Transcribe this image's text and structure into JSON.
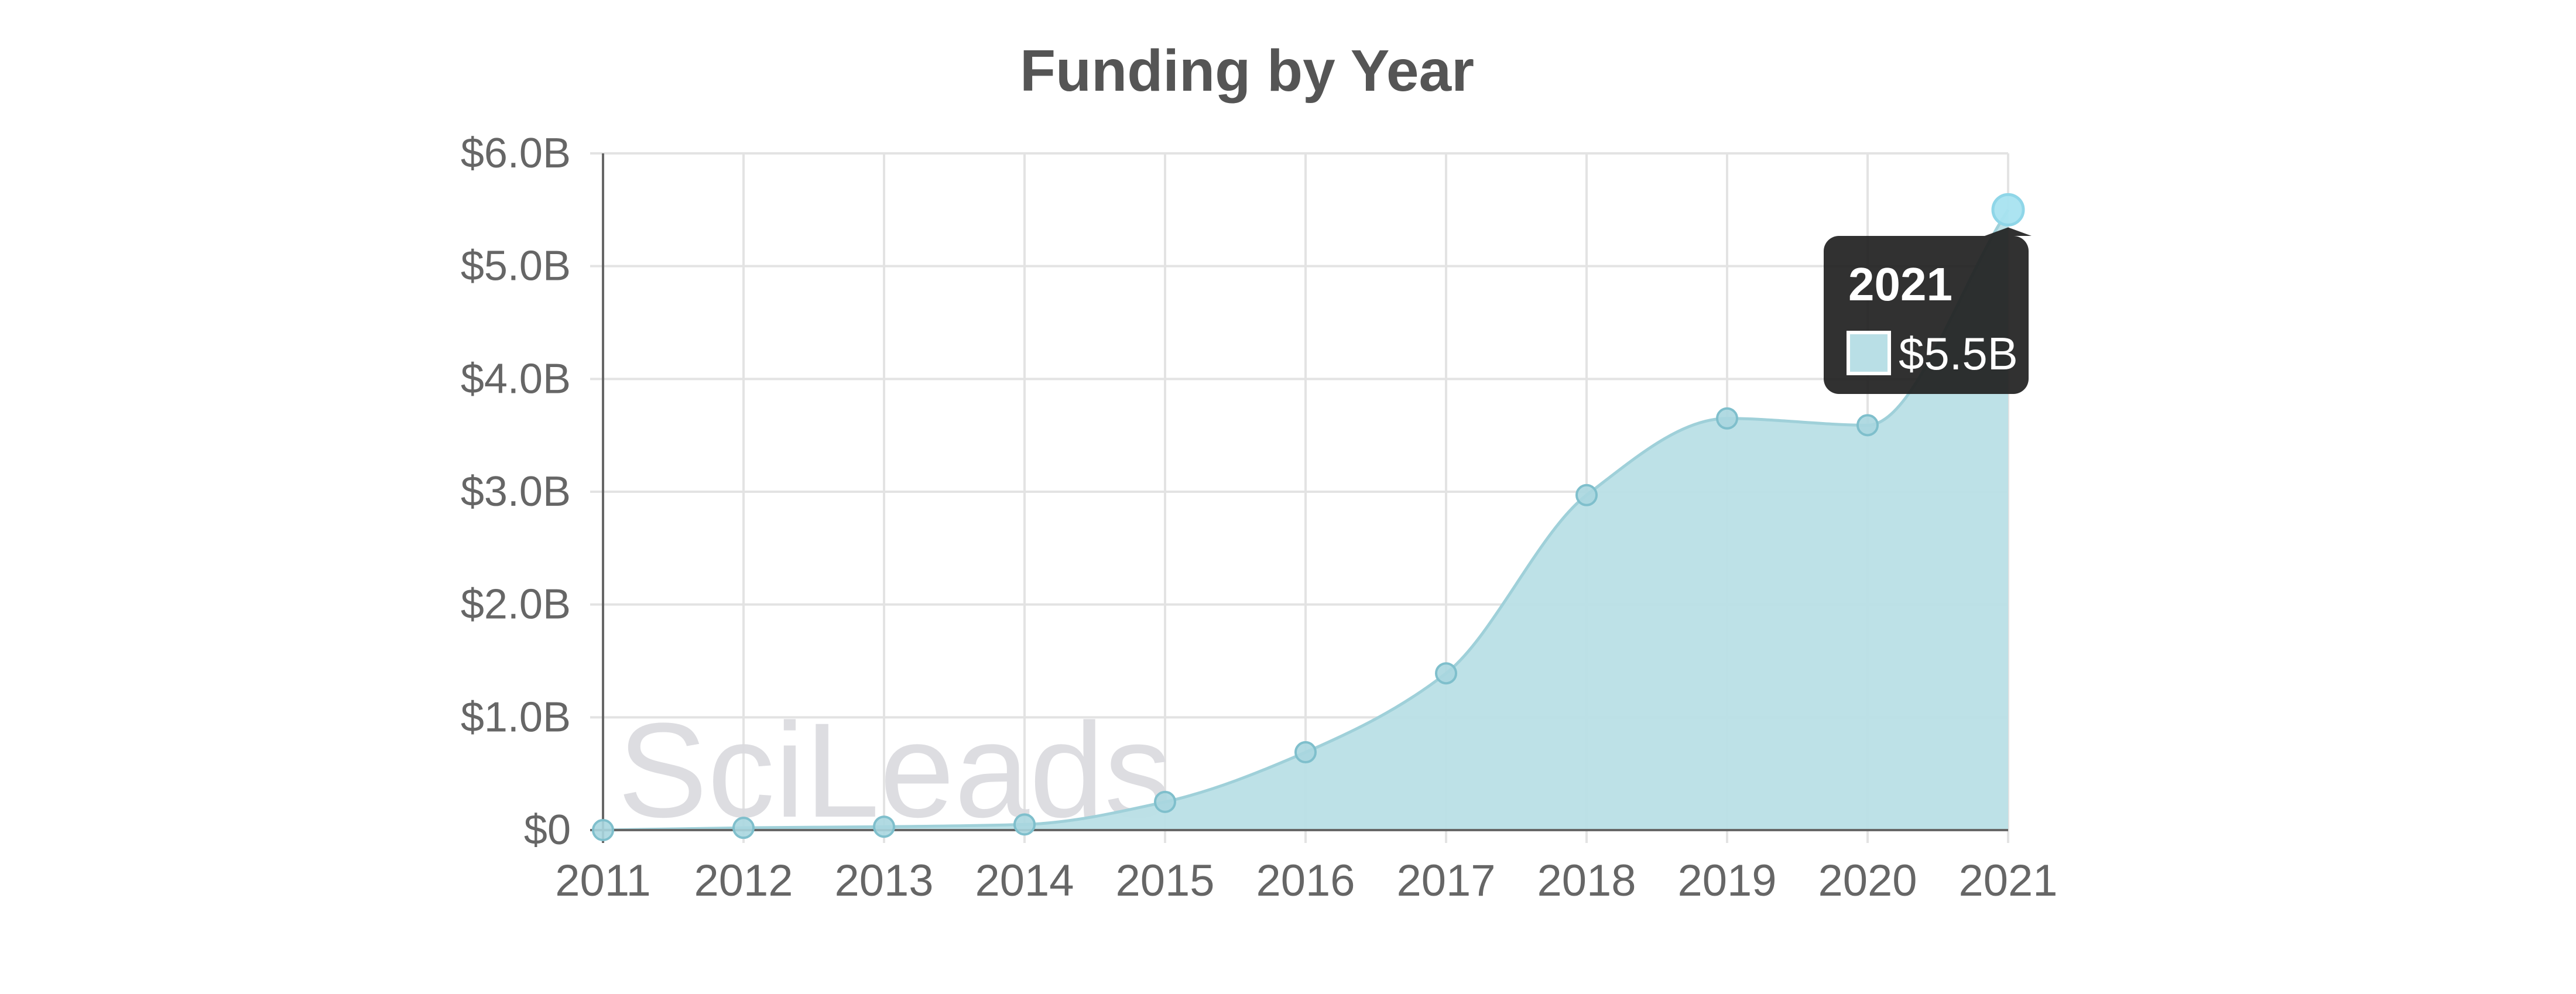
{
  "chart_data": {
    "type": "area",
    "title": "Funding by Year",
    "xlabel": "",
    "ylabel": "",
    "x": [
      "2011",
      "2012",
      "2013",
      "2014",
      "2015",
      "2016",
      "2017",
      "2018",
      "2019",
      "2020",
      "2021"
    ],
    "values": [
      0.0,
      0.02,
      0.03,
      0.05,
      0.25,
      0.69,
      1.39,
      2.97,
      3.65,
      3.59,
      5.5
    ],
    "y_unit": "billion USD",
    "ylim": [
      0,
      6
    ],
    "y_ticks": [
      0,
      1,
      2,
      3,
      4,
      5,
      6
    ],
    "y_tick_labels": [
      "$0",
      "$1.0B",
      "$2.0B",
      "$3.0B",
      "$4.0B",
      "$5.0B",
      "$6.0B"
    ],
    "grid": true,
    "legend": "none",
    "colors": {
      "area_fill": "#b9dfe6",
      "area_line": "#9fd0d9",
      "point_fill": "#a8d6df",
      "point_stroke": "#7fbfcc",
      "highlight_point": "#a8e3f0",
      "grid": "#e3e3e3",
      "axis": "#666666",
      "tick_text": "#666666",
      "title_text": "#555555",
      "tooltip_bg": "#1f1f1f",
      "tooltip_swatch": "#b9dfe6"
    },
    "tooltip": {
      "title": "2021",
      "value_label": "$5.5B",
      "index": 10
    },
    "watermark": "SciLeads"
  }
}
